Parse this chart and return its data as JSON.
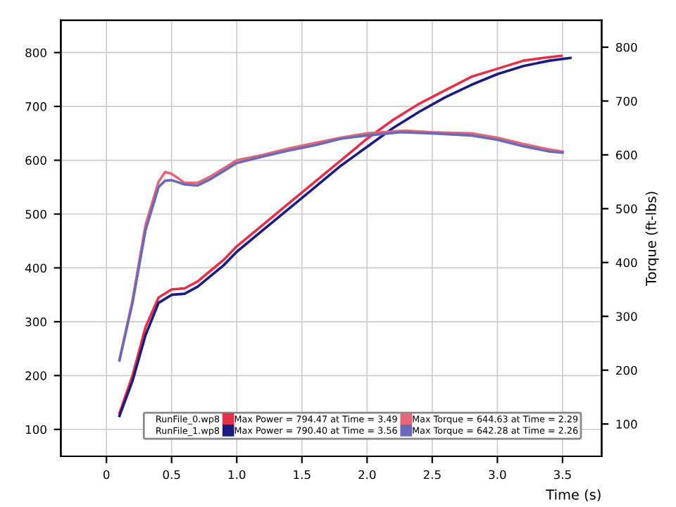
{
  "chart_data": {
    "type": "line",
    "xlabel": "Time (s)",
    "y2label": "Torque (ft-lbs)",
    "annotations": [
      "RunFile_0.wp8",
      "RunFile_1.wp8"
    ],
    "series": [
      {
        "name": "Max Power = 794.47 at Time = 3.49",
        "color": "#e0304a",
        "x": [
          0.1,
          0.2,
          0.3,
          0.4,
          0.5,
          0.6,
          0.7,
          0.8,
          0.9,
          1.0,
          1.2,
          1.4,
          1.6,
          1.8,
          2.0,
          2.2,
          2.4,
          2.6,
          2.8,
          3.0,
          3.2,
          3.35,
          3.49
        ],
        "values": [
          130,
          200,
          290,
          345,
          360,
          362,
          375,
          395,
          415,
          440,
          480,
          520,
          560,
          600,
          640,
          675,
          705,
          730,
          755,
          770,
          785,
          790,
          794
        ]
      },
      {
        "name": "Max Power = 790.40 at Time = 3.56",
        "color": "#1c1c80",
        "x": [
          0.1,
          0.2,
          0.3,
          0.4,
          0.5,
          0.6,
          0.7,
          0.8,
          0.9,
          1.0,
          1.2,
          1.4,
          1.6,
          1.8,
          2.0,
          2.2,
          2.4,
          2.6,
          2.8,
          3.0,
          3.2,
          3.4,
          3.56
        ],
        "values": [
          125,
          190,
          275,
          335,
          350,
          352,
          365,
          385,
          405,
          430,
          470,
          510,
          550,
          590,
          625,
          660,
          690,
          717,
          740,
          760,
          775,
          785,
          790
        ]
      },
      {
        "name": "Max Torque = 644.63 at Time = 2.29",
        "color": "#e06a7a",
        "axis": "y2",
        "x": [
          0.1,
          0.2,
          0.3,
          0.4,
          0.45,
          0.5,
          0.6,
          0.7,
          0.8,
          0.9,
          1.0,
          1.2,
          1.4,
          1.6,
          1.8,
          2.0,
          2.29,
          2.5,
          2.8,
          3.0,
          3.2,
          3.4,
          3.5
        ],
        "values": [
          220,
          330,
          470,
          550,
          568,
          565,
          548,
          548,
          560,
          575,
          590,
          600,
          612,
          622,
          632,
          640,
          645,
          642,
          640,
          632,
          620,
          610,
          606
        ]
      },
      {
        "name": "Max Torque = 642.28 at Time = 2.26",
        "color": "#6a6ab8",
        "axis": "y2",
        "x": [
          0.1,
          0.2,
          0.3,
          0.4,
          0.45,
          0.5,
          0.6,
          0.7,
          0.8,
          0.9,
          1.0,
          1.2,
          1.4,
          1.6,
          1.8,
          2.0,
          2.26,
          2.5,
          2.8,
          3.0,
          3.2,
          3.4,
          3.5
        ],
        "values": [
          218,
          325,
          460,
          540,
          552,
          553,
          545,
          543,
          555,
          570,
          585,
          597,
          608,
          618,
          630,
          636,
          642,
          640,
          636,
          628,
          616,
          606,
          604
        ]
      }
    ],
    "xlim": [
      -0.35,
      3.8
    ],
    "xticks": [
      0,
      0.5,
      {
        "value": 1,
        "label": "1.0"
      },
      1.5,
      {
        "value": 2,
        "label": "2.0"
      },
      2.5,
      {
        "value": 3,
        "label": "3.0"
      },
      3.5
    ],
    "ylim": [
      50,
      860
    ],
    "yticks": [
      100,
      200,
      300,
      400,
      500,
      600,
      700,
      800
    ],
    "y2lim": [
      40,
      850
    ],
    "y2ticks": [
      100,
      200,
      300,
      400,
      500,
      600,
      700,
      800
    ],
    "grid": true,
    "legend": "bottom right",
    "marker": "none",
    "line_style": "solid"
  }
}
